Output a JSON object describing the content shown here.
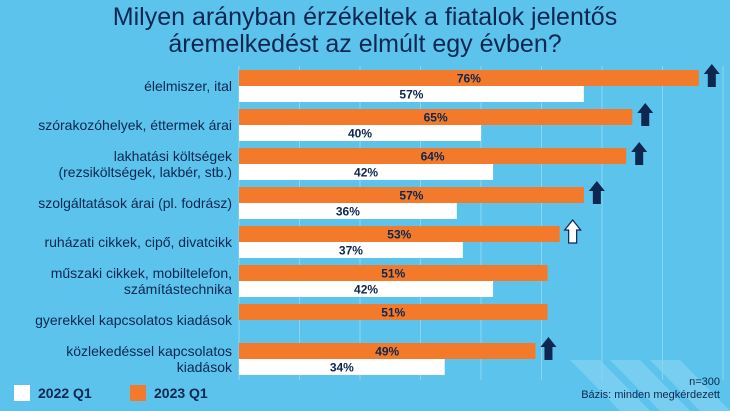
{
  "title_lines": [
    "Milyen arányban érzékeltek a fiatalok jelentős",
    "áremelkedést az elmúlt egy évben?"
  ],
  "legend": {
    "series_2022": "2022 Q1",
    "series_2023": "2023 Q1"
  },
  "footnote": {
    "n": "n=300",
    "base": "Bázis: minden megkérdezett"
  },
  "colors": {
    "background": "#5bc3ec",
    "series_2023": "#f27a2a",
    "series_2022": "#ffffff",
    "arrow": "#0d2750",
    "text": "#0d2750"
  },
  "chart_data": {
    "type": "bar",
    "orientation": "horizontal",
    "categories": [
      [
        "élelmiszer, ital"
      ],
      [
        "szórakozóhelyek, éttermek árai"
      ],
      [
        "lakhatási költségek",
        "(rezsiköltségek, lakbér, stb.)"
      ],
      [
        "szolgáltatások árai (pl. fodrász)"
      ],
      [
        "ruházati cikkek, cipő, divatcikk"
      ],
      [
        "műszaki cikkek, mobiltelefon,",
        "számítástechnika"
      ],
      [
        "gyerekkel kapcsolatos kiadások"
      ],
      [
        "közlekedéssel kapcsolatos",
        "kiadások"
      ]
    ],
    "series": [
      {
        "name": "2023 Q1",
        "values": [
          76,
          65,
          64,
          57,
          53,
          51,
          51,
          49
        ],
        "labels": [
          "76%",
          "65%",
          "64%",
          "57%",
          "53%",
          "51%",
          "51%",
          "49%"
        ]
      },
      {
        "name": "2022 Q1",
        "values": [
          57,
          40,
          42,
          36,
          37,
          42,
          null,
          34
        ],
        "labels": [
          "57%",
          "40%",
          "42%",
          "36%",
          "37%",
          "42%",
          "",
          "34%"
        ]
      }
    ],
    "change_arrows": [
      "up-filled",
      "up-filled",
      "up-filled",
      "up-filled",
      "up-outline",
      null,
      null,
      "up-filled"
    ],
    "xlim": [
      0,
      80
    ],
    "grid": true
  }
}
